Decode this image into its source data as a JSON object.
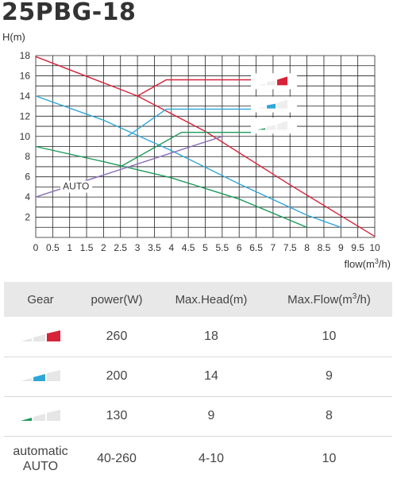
{
  "title": "25PBG-18",
  "chart_data": {
    "type": "line",
    "title": "25PBG-18",
    "ylabel": "H(m)",
    "xlabel_main": "flow(m",
    "xlabel_sup": "3",
    "xlabel_tail": "/h)",
    "xlim": [
      0,
      10
    ],
    "ylim": [
      0,
      18
    ],
    "grid": true,
    "x_ticks": [
      "0",
      "0.5",
      "1",
      "1.5",
      "2",
      "2.5",
      "3",
      "3.5",
      "4",
      "4.5",
      "5",
      "5.5",
      "6",
      "6.5",
      "7",
      "7.5",
      "8",
      "8.5",
      "9",
      "9.5",
      "10"
    ],
    "y_ticks": [
      "2",
      "4",
      "6",
      "8",
      "10",
      "12",
      "14",
      "16",
      "18"
    ],
    "annotation": "AUTO",
    "series": [
      {
        "color": "#d6233a",
        "points": [
          [
            0,
            17.9
          ],
          [
            3,
            14.0
          ],
          [
            5,
            10.5
          ],
          [
            7.5,
            5.2
          ],
          [
            10,
            0.1
          ]
        ]
      },
      {
        "color": "#2ea6d8",
        "points": [
          [
            0,
            14.0
          ],
          [
            2,
            11.6
          ],
          [
            4,
            8.6
          ],
          [
            6,
            5.3
          ],
          [
            8,
            2.2
          ],
          [
            9,
            1.0
          ]
        ]
      },
      {
        "color": "#1c9a5a",
        "points": [
          [
            0,
            9.0
          ],
          [
            2,
            7.5
          ],
          [
            4,
            5.9
          ],
          [
            6,
            3.8
          ],
          [
            8,
            1.0
          ]
        ]
      },
      {
        "color": "#8a6fb8",
        "points": [
          [
            0,
            4.0
          ],
          [
            5.5,
            10.0
          ]
        ]
      },
      {
        "color": "#d6233a",
        "points": [
          [
            3,
            14.0
          ],
          [
            3.85,
            15.6
          ],
          [
            7.5,
            15.6
          ]
        ]
      },
      {
        "color": "#2ea6d8",
        "points": [
          [
            2.7,
            10.0
          ],
          [
            3.85,
            12.7
          ],
          [
            7.5,
            12.7
          ]
        ]
      },
      {
        "color": "#1c9a5a",
        "points": [
          [
            2.5,
            7.0
          ],
          [
            4.3,
            10.4
          ],
          [
            7.7,
            10.4
          ]
        ]
      }
    ]
  },
  "table": {
    "headers": [
      "Gear",
      "power(W)",
      "Max.Head(m)",
      "Max.Flow(m"
    ],
    "flow_header_sup": "3",
    "flow_header_tail": "/h)",
    "rows": [
      {
        "gear_icon": "gear-high-icon",
        "power": "260",
        "head": "18",
        "flow": "10"
      },
      {
        "gear_icon": "gear-medium-icon",
        "power": "200",
        "head": "14",
        "flow": "9"
      },
      {
        "gear_icon": "gear-low-icon",
        "power": "130",
        "head": "9",
        "flow": "8"
      },
      {
        "gear_line1": "automatic",
        "gear_line2": "AUTO",
        "power": "40-260",
        "head": "4-10",
        "flow": "10"
      }
    ]
  },
  "colors": {
    "high": "#d6233a",
    "medium": "#2ea6d8",
    "low": "#1c9a5a",
    "auto": "#8a6fb8",
    "inactive": "#e6e6e6"
  }
}
